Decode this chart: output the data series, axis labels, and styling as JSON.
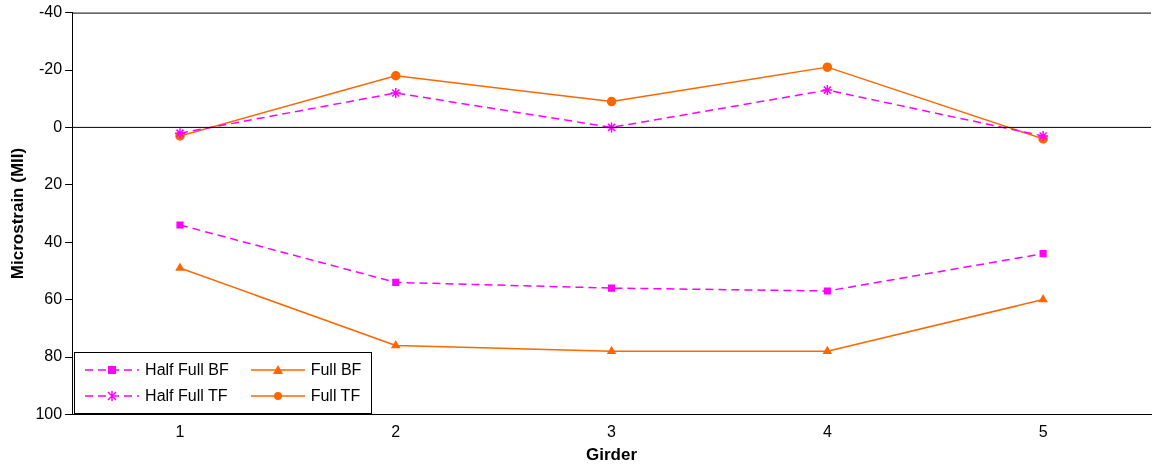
{
  "chart_data": {
    "type": "line",
    "xlabel": "Girder",
    "ylabel": "Microstrain (MII)",
    "categories": [
      "1",
      "2",
      "3",
      "4",
      "5"
    ],
    "ylim": [
      100,
      -40
    ],
    "yticks": [
      -40,
      -20,
      0,
      20,
      40,
      60,
      80,
      100
    ],
    "grid": false,
    "legend": "bottom left",
    "ref_lines": [
      {
        "axis": "y",
        "value": 0,
        "color": "#000000"
      }
    ],
    "series": [
      {
        "name": "Half Full BF",
        "color": "#ff00ff",
        "marker": "square",
        "line_style": "dashed",
        "values": [
          34,
          54,
          56,
          57,
          44
        ]
      },
      {
        "name": "Full BF",
        "color": "#ff6600",
        "marker": "triangle",
        "line_style": "solid",
        "values": [
          49,
          76,
          78,
          78,
          60
        ]
      },
      {
        "name": "Half Full TF",
        "color": "#ff00ff",
        "marker": "cross",
        "line_style": "dashed",
        "values": [
          2,
          -12,
          0,
          -13,
          3
        ]
      },
      {
        "name": "Full TF",
        "color": "#ff6600",
        "marker": "circle",
        "line_style": "solid",
        "values": [
          3,
          -18,
          -9,
          -21,
          4
        ]
      }
    ]
  }
}
